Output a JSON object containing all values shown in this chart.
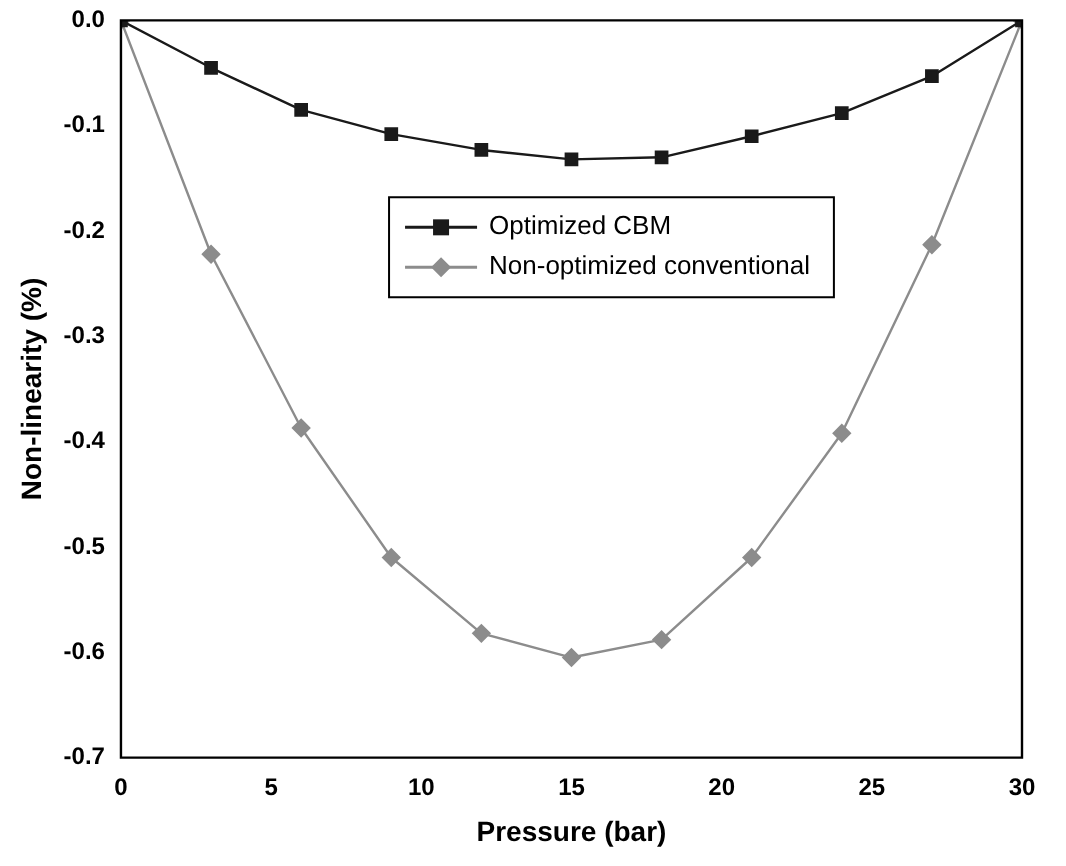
{
  "chart_data": {
    "type": "line",
    "xlabel": "Pressure (bar)",
    "ylabel": "Non-linearity (%)",
    "x": [
      0,
      3,
      6,
      9,
      12,
      15,
      18,
      21,
      24,
      27,
      30
    ],
    "series": [
      {
        "name": "Optimized CBM",
        "color": "#1a1a1a",
        "marker": "square",
        "values": [
          0,
          -0.045,
          -0.085,
          -0.108,
          -0.123,
          -0.132,
          -0.13,
          -0.11,
          -0.088,
          -0.053,
          0
        ]
      },
      {
        "name": "Non-optimized conventional",
        "color": "#8c8c8c",
        "marker": "diamond",
        "values": [
          0,
          -0.222,
          -0.387,
          -0.51,
          -0.582,
          -0.605,
          -0.588,
          -0.51,
          -0.392,
          -0.213,
          0
        ]
      }
    ],
    "xlim": [
      0,
      30
    ],
    "xticks": [
      0,
      5,
      10,
      15,
      20,
      25,
      30
    ],
    "ylim": [
      -0.7,
      0
    ],
    "yticks": [
      -0.7,
      -0.6,
      -0.5,
      -0.4,
      -0.3,
      -0.2,
      -0.1,
      {
        "value": 0,
        "label": "0.0"
      }
    ],
    "grid": false,
    "legend": "top"
  }
}
